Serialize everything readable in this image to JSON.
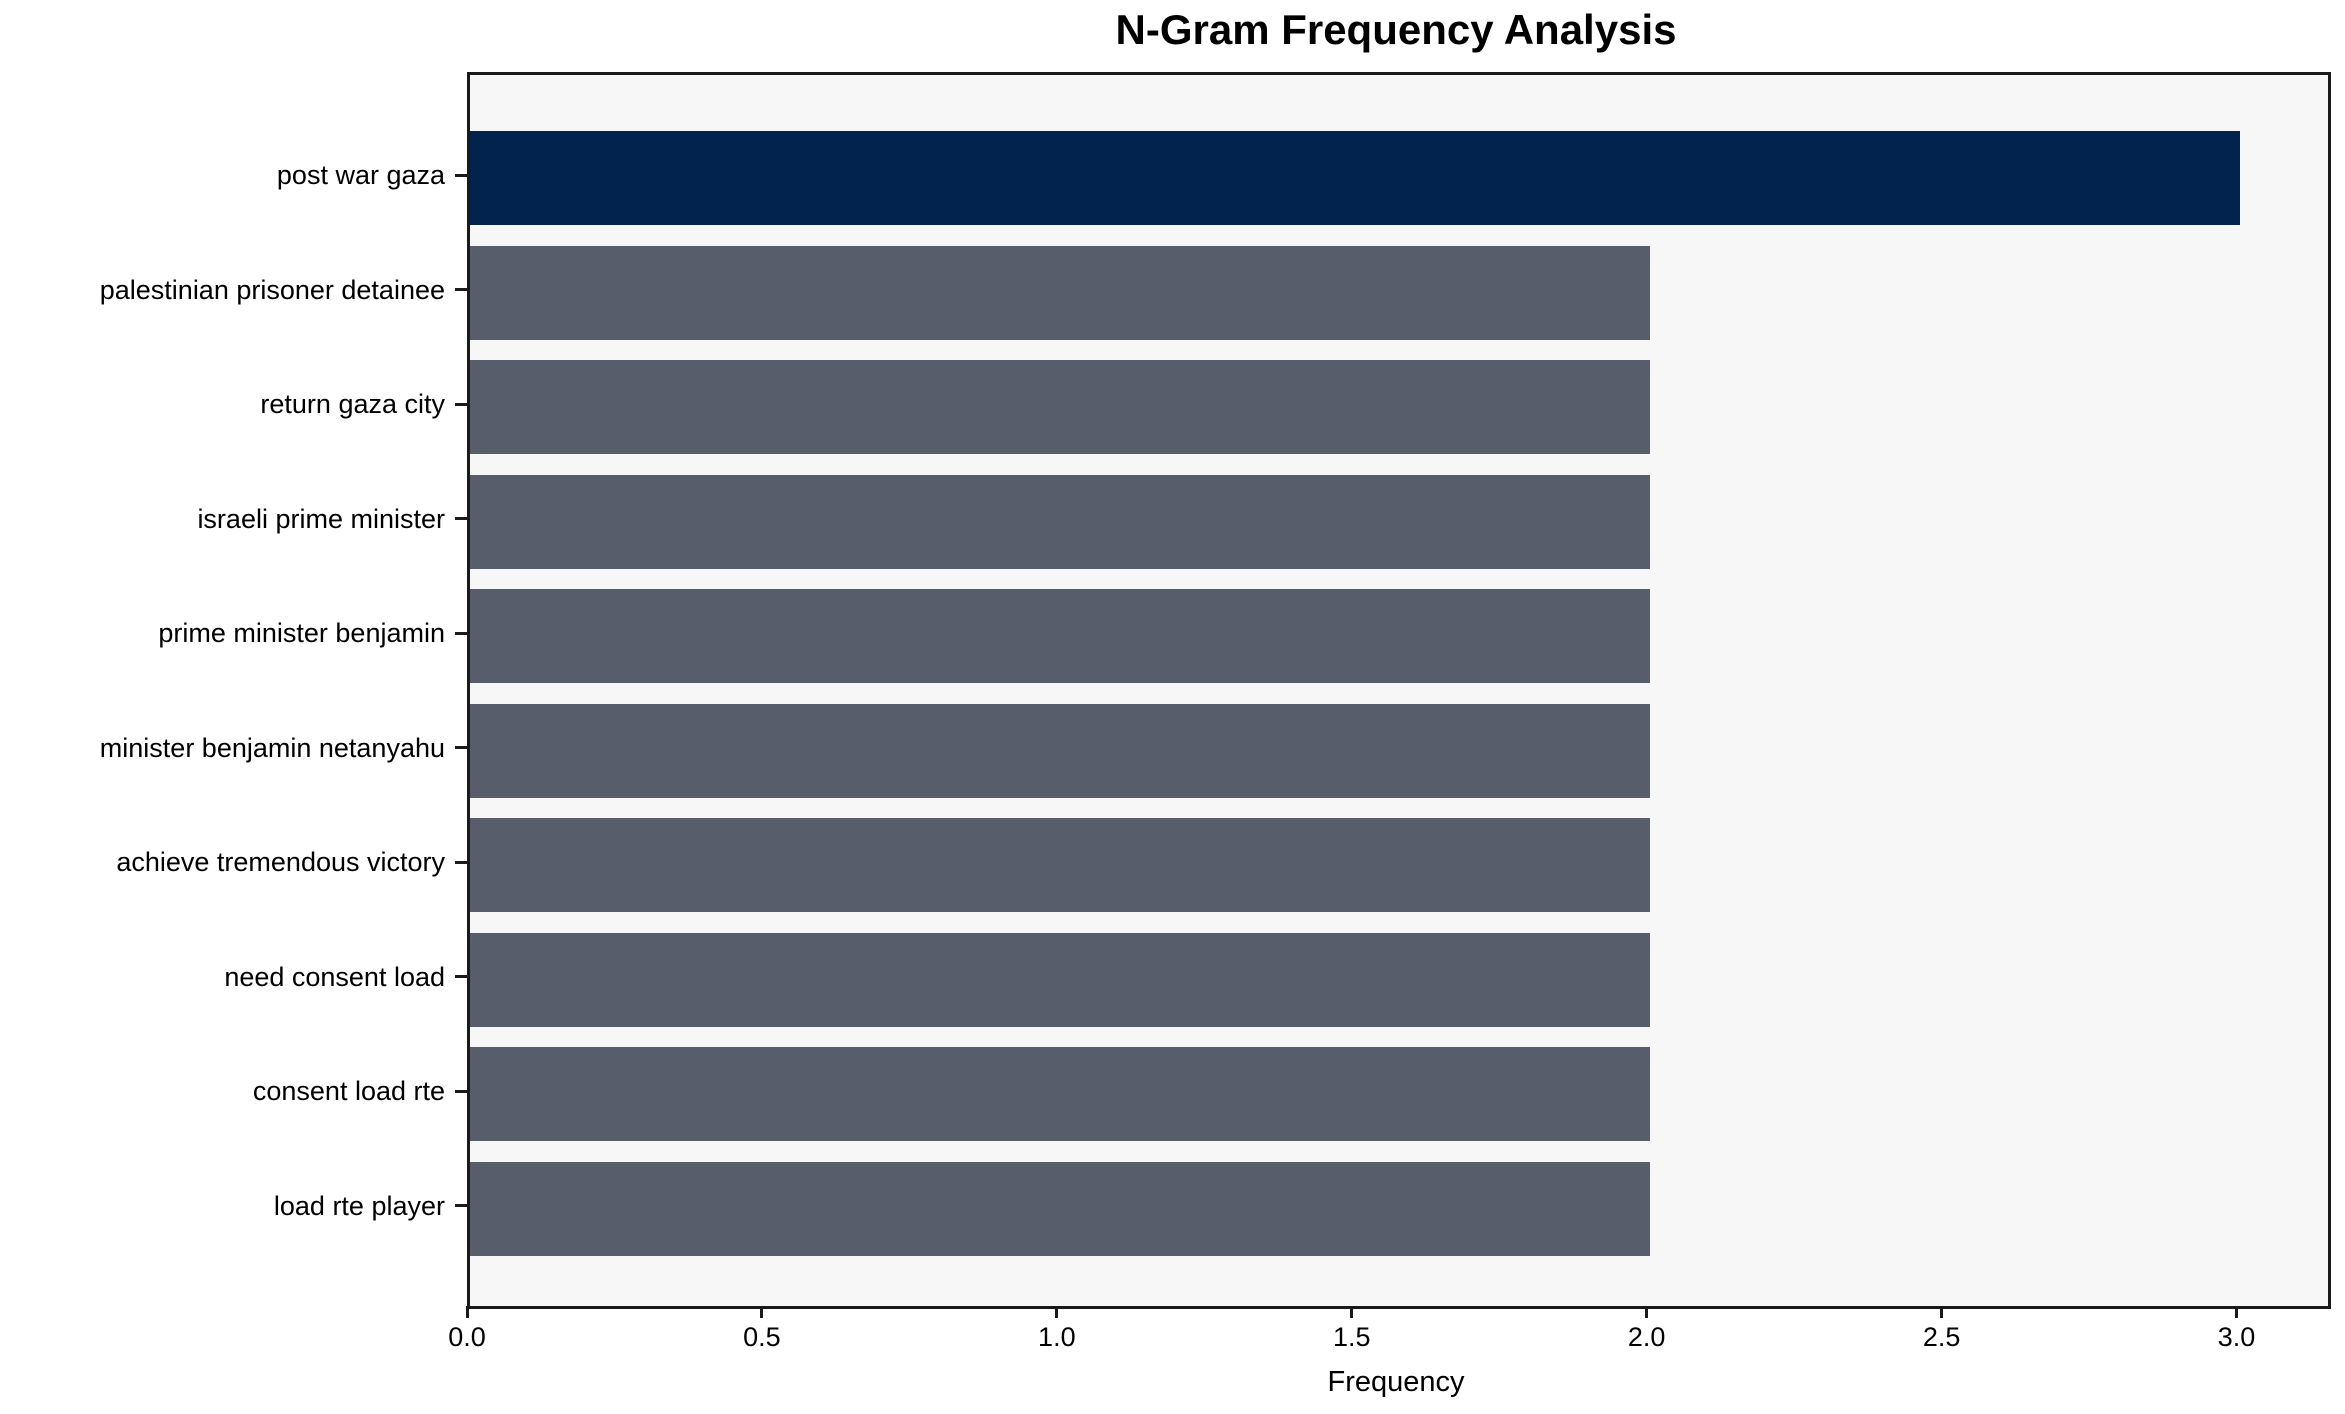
{
  "chart_data": {
    "type": "bar",
    "orientation": "horizontal",
    "title": "N-Gram Frequency Analysis",
    "xlabel": "Frequency",
    "ylabel": "",
    "categories": [
      "post war gaza",
      "palestinian prisoner detainee",
      "return gaza city",
      "israeli prime minister",
      "prime minister benjamin",
      "minister benjamin netanyahu",
      "achieve tremendous victory",
      "need consent load",
      "consent load rte",
      "load rte player"
    ],
    "values": [
      3,
      2,
      2,
      2,
      2,
      2,
      2,
      2,
      2,
      2
    ],
    "xlim": [
      0,
      3.15
    ],
    "xticks": [
      0.0,
      0.5,
      1.0,
      1.5,
      2.0,
      2.5,
      3.0
    ],
    "xtick_labels": [
      "0.0",
      "0.5",
      "1.0",
      "1.5",
      "2.0",
      "2.5",
      "3.0"
    ],
    "grid": false,
    "legend": null,
    "bar_colors": [
      "#02234d",
      "#575d6a",
      "#575d6a",
      "#575d6a",
      "#575d6a",
      "#575d6a",
      "#575d6a",
      "#575d6a",
      "#575d6a",
      "#575d6a"
    ],
    "colors": {
      "highlight_bar": "#02234d",
      "default_bar": "#575d6a",
      "plot_background": "#f7f7f8",
      "figure_background": "#ffffff",
      "spine": "#1a1a1a",
      "text": "#000000"
    }
  }
}
